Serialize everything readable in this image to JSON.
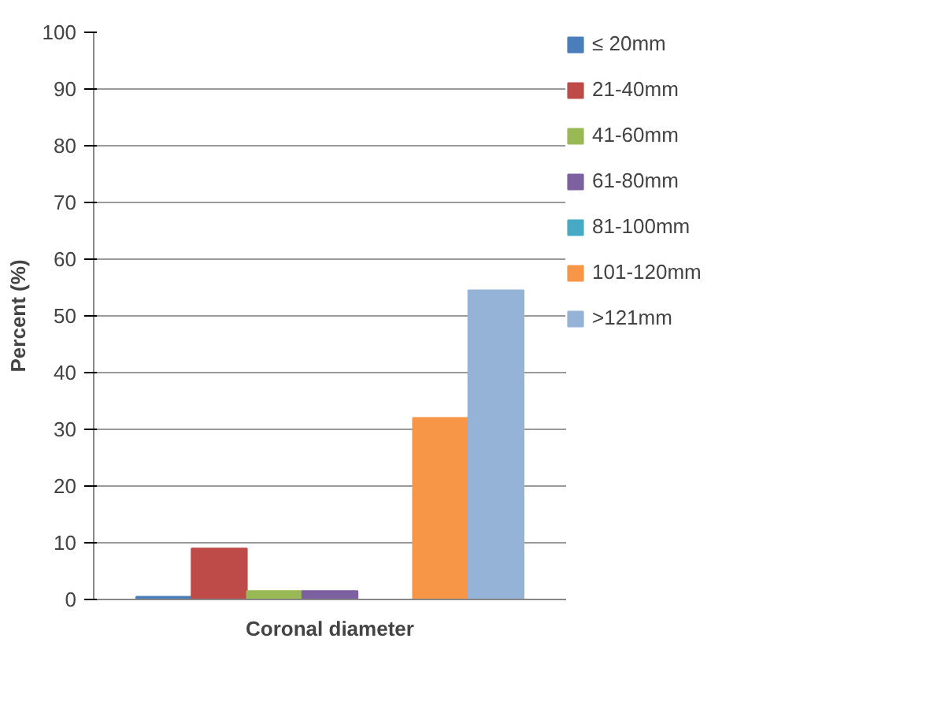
{
  "chart_data": {
    "type": "bar",
    "xlabel": "Coronal diameter",
    "ylabel": "Percent (%)",
    "categories": [
      null
    ],
    "series": [
      {
        "name": "≤ 20mm",
        "color": "#4a7ebb",
        "values": [
          0.5
        ]
      },
      {
        "name": "21-40mm",
        "color": "#be4b48",
        "values": [
          9
        ]
      },
      {
        "name": "41-60mm",
        "color": "#98b954",
        "values": [
          1.5
        ]
      },
      {
        "name": "61-80mm",
        "color": "#7d60a0",
        "values": [
          1.5
        ]
      },
      {
        "name": "81-100mm",
        "color": "#46aac5",
        "values": [
          0
        ]
      },
      {
        "name": "101-120mm",
        "color": "#f79646",
        "values": [
          32
        ]
      },
      {
        "name": ">121mm",
        "color": "#95b3d7",
        "values": [
          54.5
        ]
      }
    ],
    "ylim": [
      0,
      100
    ],
    "yticks": [
      0,
      10,
      20,
      30,
      40,
      50,
      60,
      70,
      80,
      90,
      100
    ],
    "grid": "y",
    "legend": "right"
  }
}
